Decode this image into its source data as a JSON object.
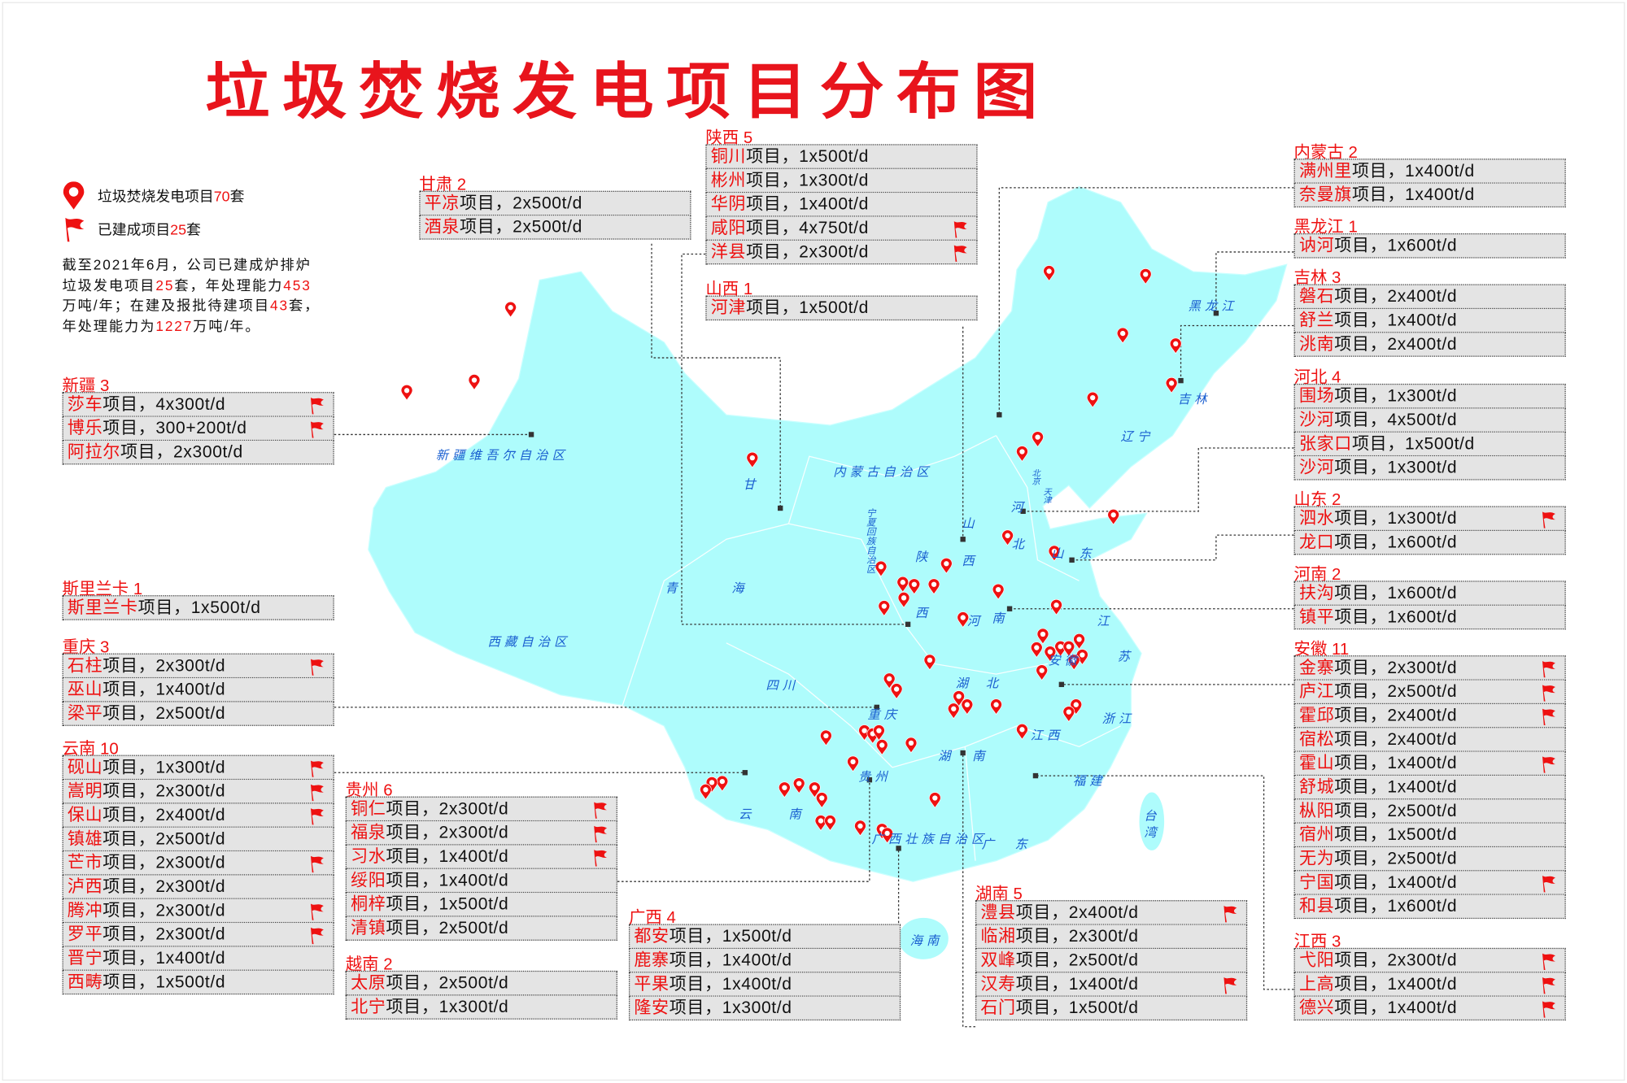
{
  "title": "垃圾焚烧发电项目分布图",
  "colors": {
    "accent": "#ee1111",
    "map_fill": "#aefcfc",
    "label_blue": "#1a5fd0",
    "row_bg": "#e4e4e4"
  },
  "legend": {
    "pins": {
      "icon": "map-pin-icon",
      "pre": "垃圾焚烧发电项目",
      "num": "70",
      "post": "套"
    },
    "flags": {
      "icon": "red-flag-icon",
      "pre": "已建成项目",
      "num": "25",
      "post": "套"
    }
  },
  "summary": [
    {
      "t": "截至2021年6月，公司已建成炉排炉垃圾发电项目",
      "red": false
    },
    {
      "t": "25",
      "red": true
    },
    {
      "t": "套，年处理能力",
      "red": false
    },
    {
      "t": "453",
      "red": true
    },
    {
      "t": "万吨/年；在建及报批待建项目",
      "red": false
    },
    {
      "t": "43",
      "red": true
    },
    {
      "t": "套，年处理能力为",
      "red": false
    },
    {
      "t": "1227",
      "red": true
    },
    {
      "t": "万吨/年。",
      "red": false
    }
  ],
  "row_suffix": "项目，",
  "regions": [
    {
      "id": "xinjiang",
      "heading": "新疆 3",
      "rows": [
        {
          "name": "莎车",
          "cap": "4x300t/d",
          "built": true
        },
        {
          "name": "博乐",
          "cap": "300+200t/d",
          "built": true
        },
        {
          "name": "阿拉尔",
          "cap": "2x300t/d",
          "built": false
        }
      ]
    },
    {
      "id": "srilanka",
      "heading": "斯里兰卡 1",
      "rows": [
        {
          "name": "斯里兰卡",
          "cap": "1x500t/d",
          "built": false
        }
      ]
    },
    {
      "id": "chongqing",
      "heading": "重庆 3",
      "rows": [
        {
          "name": "石柱",
          "cap": "2x300t/d",
          "built": true
        },
        {
          "name": "巫山",
          "cap": "1x400t/d",
          "built": false
        },
        {
          "name": "梁平",
          "cap": "2x500t/d",
          "built": false
        }
      ]
    },
    {
      "id": "yunnan",
      "heading": "云南 10",
      "rows": [
        {
          "name": "砚山",
          "cap": "1x300t/d",
          "built": true
        },
        {
          "name": "嵩明",
          "cap": "2x300t/d",
          "built": true
        },
        {
          "name": "保山",
          "cap": "2x400t/d",
          "built": true
        },
        {
          "name": "镇雄",
          "cap": "2x500t/d",
          "built": false
        },
        {
          "name": "芒市",
          "cap": "2x300t/d",
          "built": true
        },
        {
          "name": "泸西",
          "cap": "2x300t/d",
          "built": false
        },
        {
          "name": "腾冲",
          "cap": "2x300t/d",
          "built": true
        },
        {
          "name": "罗平",
          "cap": "2x300t/d",
          "built": true
        },
        {
          "name": "晋宁",
          "cap": "1x400t/d",
          "built": false
        },
        {
          "name": "西畴",
          "cap": "1x500t/d",
          "built": false
        }
      ]
    },
    {
      "id": "guizhou",
      "heading": "贵州 6",
      "rows": [
        {
          "name": "铜仁",
          "cap": "2x300t/d",
          "built": true
        },
        {
          "name": "福泉",
          "cap": "2x300t/d",
          "built": true
        },
        {
          "name": "习水",
          "cap": "1x400t/d",
          "built": true
        },
        {
          "name": "绥阳",
          "cap": "1x400t/d",
          "built": false
        },
        {
          "name": "桐梓",
          "cap": "1x500t/d",
          "built": false
        },
        {
          "name": "清镇",
          "cap": "2x500t/d",
          "built": false
        }
      ]
    },
    {
      "id": "vietnam",
      "heading": "越南 2",
      "rows": [
        {
          "name": "太原",
          "cap": "2x500t/d",
          "built": false
        },
        {
          "name": "北宁",
          "cap": "1x300t/d",
          "built": false
        }
      ]
    },
    {
      "id": "guangxi",
      "heading": "广西 4",
      "rows": [
        {
          "name": "都安",
          "cap": "1x500t/d",
          "built": false
        },
        {
          "name": "鹿寨",
          "cap": "1x400t/d",
          "built": false
        },
        {
          "name": "平果",
          "cap": "1x400t/d",
          "built": false
        },
        {
          "name": "隆安",
          "cap": "1x300t/d",
          "built": false
        }
      ]
    },
    {
      "id": "hunan",
      "heading": "湖南 5",
      "rows": [
        {
          "name": "澧县",
          "cap": "2x400t/d",
          "built": true
        },
        {
          "name": "临湘",
          "cap": "2x300t/d",
          "built": false
        },
        {
          "name": "双峰",
          "cap": "2x500t/d",
          "built": false
        },
        {
          "name": "汉寿",
          "cap": "1x400t/d",
          "built": true
        },
        {
          "name": "石门",
          "cap": "1x500t/d",
          "built": false
        }
      ]
    },
    {
      "id": "gansu",
      "heading": "甘肃 2",
      "rows": [
        {
          "name": "平凉",
          "cap": "2x500t/d",
          "built": false
        },
        {
          "name": "酒泉",
          "cap": "2x500t/d",
          "built": false
        }
      ]
    },
    {
      "id": "shaanxi",
      "heading": "陕西 5",
      "rows": [
        {
          "name": "铜川",
          "cap": "1x500t/d",
          "built": false
        },
        {
          "name": "彬州",
          "cap": "1x300t/d",
          "built": false
        },
        {
          "name": "华阴",
          "cap": "1x400t/d",
          "built": false
        },
        {
          "name": "咸阳",
          "cap": "4x750t/d",
          "built": true
        },
        {
          "name": "洋县",
          "cap": "2x300t/d",
          "built": true
        }
      ]
    },
    {
      "id": "shanxi",
      "heading": "山西 1",
      "rows": [
        {
          "name": "河津",
          "cap": "1x500t/d",
          "built": false
        }
      ]
    },
    {
      "id": "neimenggu",
      "heading": "内蒙古 2",
      "rows": [
        {
          "name": "满州里",
          "cap": "1x400t/d",
          "built": false
        },
        {
          "name": "奈曼旗",
          "cap": "1x400t/d",
          "built": false
        }
      ]
    },
    {
      "id": "heilongjiang",
      "heading": "黑龙江 1",
      "rows": [
        {
          "name": "讷河",
          "cap": "1x600t/d",
          "built": false
        }
      ]
    },
    {
      "id": "jilin",
      "heading": "吉林 3",
      "rows": [
        {
          "name": "磐石",
          "cap": "2x400t/d",
          "built": false
        },
        {
          "name": "舒兰",
          "cap": "1x400t/d",
          "built": false
        },
        {
          "name": "洮南",
          "cap": "2x400t/d",
          "built": false
        }
      ]
    },
    {
      "id": "hebei",
      "heading": "河北 4",
      "rows": [
        {
          "name": "围场",
          "cap": "1x300t/d",
          "built": false
        },
        {
          "name": "沙河",
          "cap": "4x500t/d",
          "built": false
        },
        {
          "name": "张家口",
          "cap": "1x500t/d",
          "built": false
        },
        {
          "name": "沙河",
          "cap": "1x300t/d",
          "built": false
        }
      ]
    },
    {
      "id": "shandong",
      "heading": "山东 2",
      "rows": [
        {
          "name": "泗水",
          "cap": "1x300t/d",
          "built": true
        },
        {
          "name": "龙口",
          "cap": "1x600t/d",
          "built": false
        }
      ]
    },
    {
      "id": "henan",
      "heading": "河南 2",
      "rows": [
        {
          "name": "扶沟",
          "cap": "1x600t/d",
          "built": false
        },
        {
          "name": "镇平",
          "cap": "1x600t/d",
          "built": false
        }
      ]
    },
    {
      "id": "anhui",
      "heading": "安徽 11",
      "rows": [
        {
          "name": "金寨",
          "cap": "2x300t/d",
          "built": true
        },
        {
          "name": "庐江",
          "cap": "2x500t/d",
          "built": true
        },
        {
          "name": "霍邱",
          "cap": "2x400t/d",
          "built": true
        },
        {
          "name": "宿松",
          "cap": "2x400t/d",
          "built": false
        },
        {
          "name": "霍山",
          "cap": "1x400t/d",
          "built": true
        },
        {
          "name": "舒城",
          "cap": "1x400t/d",
          "built": false
        },
        {
          "name": "枞阳",
          "cap": "2x500t/d",
          "built": false
        },
        {
          "name": "宿州",
          "cap": "1x500t/d",
          "built": false
        },
        {
          "name": "无为",
          "cap": "2x500t/d",
          "built": false
        },
        {
          "name": "宁国",
          "cap": "1x400t/d",
          "built": true
        },
        {
          "name": "和县",
          "cap": "1x600t/d",
          "built": false
        }
      ]
    },
    {
      "id": "jiangxi",
      "heading": "江西 3",
      "rows": [
        {
          "name": "弋阳",
          "cap": "2x300t/d",
          "built": true
        },
        {
          "name": "上高",
          "cap": "1x400t/d",
          "built": true
        },
        {
          "name": "德兴",
          "cap": "1x400t/d",
          "built": true
        }
      ]
    }
  ],
  "map_labels": [
    "新疆维吾尔自治区",
    "甘",
    "内蒙古自治区",
    "黑龙江",
    "吉林",
    "辽宁",
    "北京",
    "天津",
    "河",
    "北",
    "山",
    "西",
    "宁夏回族自治区",
    "陕",
    "西",
    "青",
    "海",
    "西藏自治区",
    "四川",
    "重庆",
    "河",
    "南",
    "山",
    "东",
    "江",
    "苏",
    "安徽",
    "湖",
    "北",
    "浙江",
    "江西",
    "湖",
    "南",
    "贵州",
    "云",
    "南",
    "广西壮族自治区",
    "广",
    "东",
    "福建",
    "台湾",
    "海南"
  ]
}
